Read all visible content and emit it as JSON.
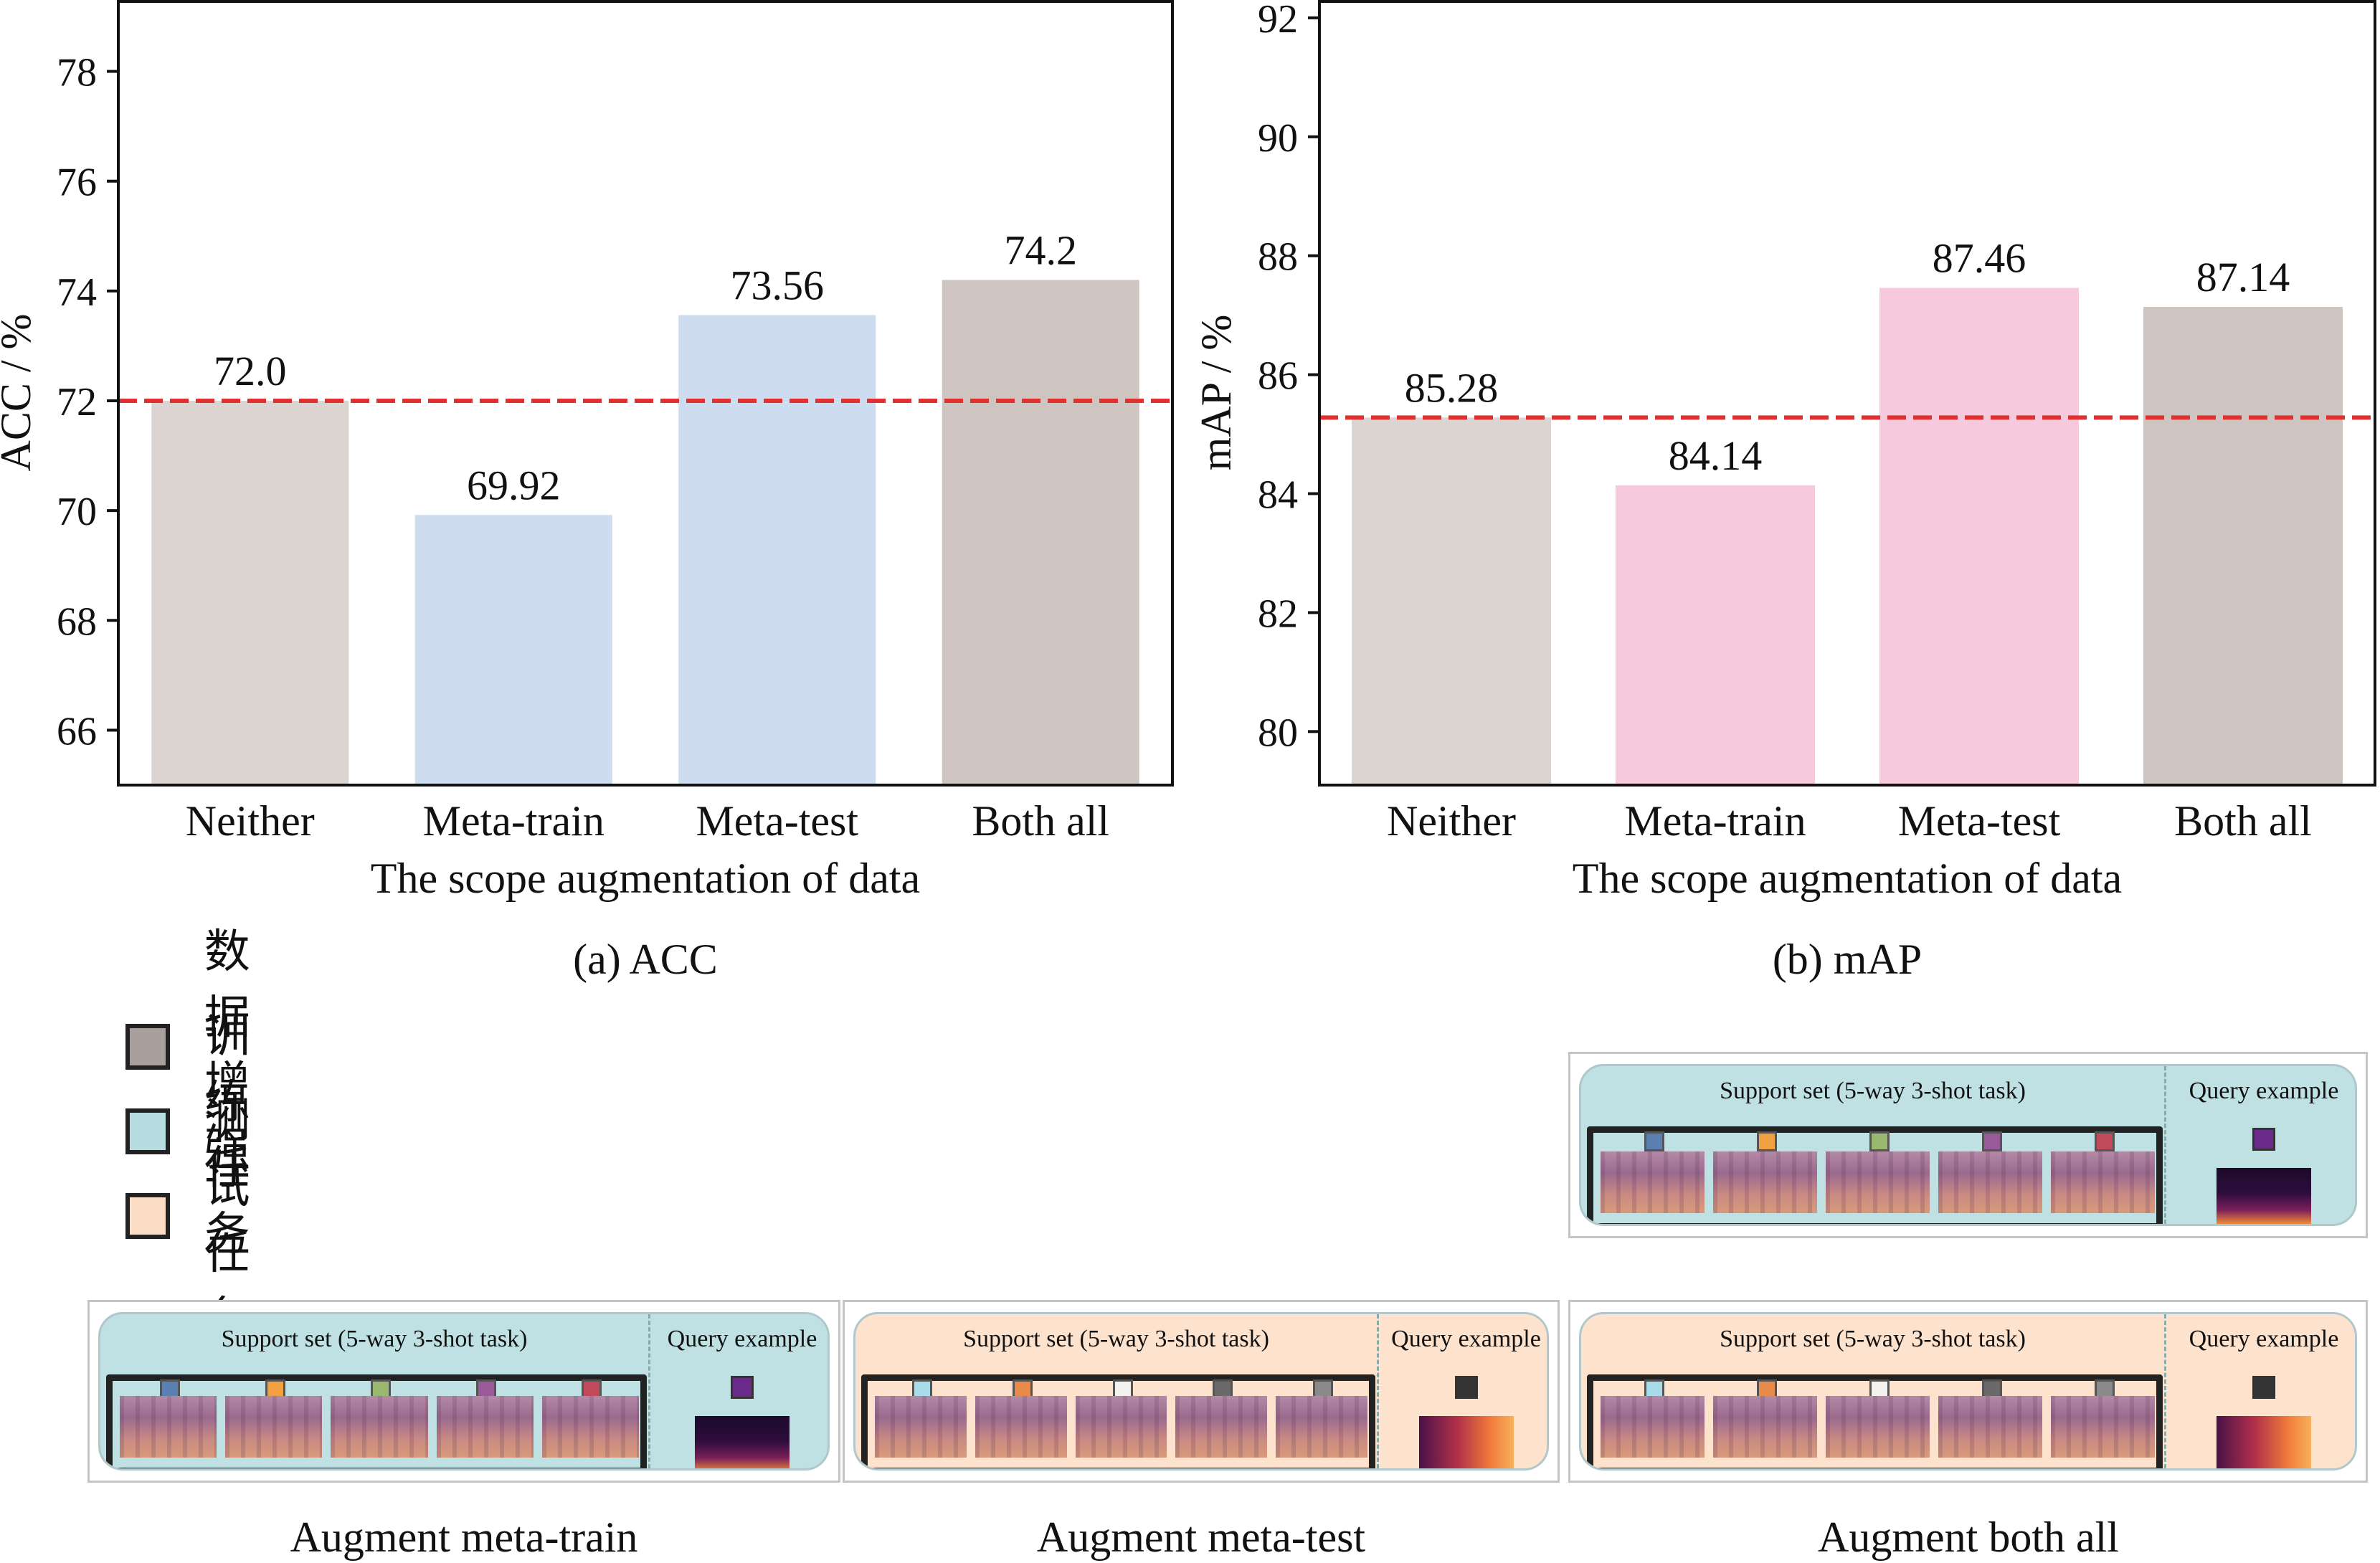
{
  "chart_data": [
    {
      "type": "bar",
      "caption": "(a) ACC",
      "categories": [
        "Neither",
        "Meta-train",
        "Meta-test",
        "Both all"
      ],
      "values": [
        72.0,
        69.92,
        73.56,
        74.2
      ],
      "value_labels": [
        "72.0",
        "69.92",
        "73.56",
        "74.2"
      ],
      "colors": [
        "#dcd4d0",
        "#cddcef",
        "#cddcef",
        "#cec5c1"
      ],
      "xlabel": "The scope augmentation of data",
      "ylabel": "ACC / %",
      "ylim": [
        65,
        79.3
      ],
      "yticks": [
        66,
        68,
        70,
        72,
        74,
        76,
        78
      ],
      "baseline": 72.0,
      "baseline_color": "#e03030"
    },
    {
      "type": "bar",
      "caption": "(b) mAP",
      "categories": [
        "Neither",
        "Meta-train",
        "Meta-test",
        "Both all"
      ],
      "values": [
        85.28,
        84.14,
        87.46,
        87.14
      ],
      "value_labels": [
        "85.28",
        "84.14",
        "87.46",
        "87.14"
      ],
      "colors": [
        "#dcd4d0",
        "#f6c9dc",
        "#f6c9dc",
        "#cec5c1"
      ],
      "xlabel": "The scope augmentation of data",
      "ylabel": "mAP / %",
      "ylim": [
        79.1,
        92.3
      ],
      "yticks": [
        80,
        82,
        84,
        86,
        88,
        90,
        92
      ],
      "baseline": 85.28,
      "baseline_color": "#e03030"
    }
  ],
  "legend": [
    {
      "label": "数据增强",
      "color": "#a89f9c"
    },
    {
      "label": "训练任务",
      "color": "#b6dde0"
    },
    {
      "label": "测试任务",
      "color": "#fcdcc4"
    }
  ],
  "panels": [
    {
      "caption": "Augment meta-train",
      "support_title": "Support set (5-way 3-shot task)",
      "query_title": "Query example",
      "support_bg": "#bfe1e4",
      "query_bg": "#bfe1e4",
      "chips": [
        "#5a7fb0",
        "#f0a040",
        "#9ab870",
        "#9a5a9a",
        "#c04a5a"
      ],
      "query_chip": "#6a2a8a",
      "warm_query": false
    },
    {
      "caption": "Augment meta-test",
      "support_title": "Support set (5-way 3-shot task)",
      "query_title": "Query example",
      "support_bg": "#fde2cd",
      "query_bg": "#fde2cd",
      "chips": [
        "#a8dce8",
        "#e88a4a",
        "#f4f0ee",
        "#6a6a6a",
        "#8a8a8a"
      ],
      "query_chip": "#333333",
      "warm_query": true
    },
    {
      "caption": "Augment both all",
      "support_title": "Support set (5-way 3-shot task)",
      "query_title": "Query example",
      "support_bg": "#fde2cd",
      "query_bg": "#fde2cd",
      "chips": [
        "#a8dce8",
        "#e88a4a",
        "#f4f0ee",
        "#6a6a6a",
        "#8a8a8a"
      ],
      "query_chip": "#333333",
      "warm_query": true
    },
    {
      "caption": "",
      "support_title": "Support set (5-way 3-shot task)",
      "query_title": "Query example",
      "support_bg": "#bfe1e4",
      "query_bg": "#bfe1e4",
      "chips": [
        "#5a7fb0",
        "#f0a040",
        "#9ab870",
        "#9a5a9a",
        "#c04a5a"
      ],
      "query_chip": "#6a2a8a",
      "warm_query": false
    }
  ]
}
